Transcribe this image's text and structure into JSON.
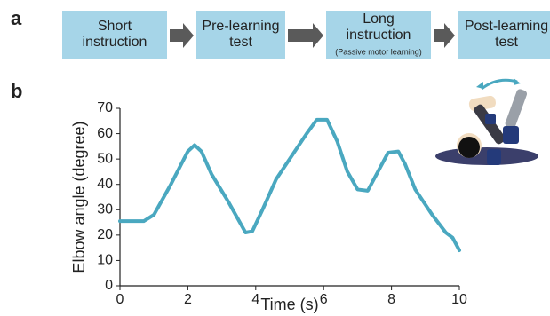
{
  "panel_a": {
    "label": "a",
    "steps": [
      {
        "lines": [
          "Short",
          "instruction"
        ]
      },
      {
        "lines": [
          "Pre-learning",
          "test"
        ]
      },
      {
        "lines": [
          "Long",
          "instruction"
        ],
        "note": "(Passive motor learning)"
      },
      {
        "lines": [
          "Post-learning",
          "test"
        ]
      }
    ]
  },
  "chart_data": {
    "type": "line",
    "panel_label": "b",
    "x_label": "Time (s)",
    "y_label": "Elbow angle (degree)",
    "xlim": [
      0,
      10
    ],
    "ylim": [
      0,
      70
    ],
    "xticks": [
      0,
      2,
      4,
      6,
      8,
      10
    ],
    "yticks": [
      0,
      10,
      20,
      30,
      40,
      50,
      60,
      70
    ],
    "series": [
      {
        "color": "#4aa8c0",
        "x": [
          0,
          0.7,
          1,
          1.5,
          2,
          2.2,
          2.4,
          2.7,
          3.2,
          3.7,
          3.9,
          4.2,
          4.6,
          5,
          5.5,
          5.8,
          6.1,
          6.4,
          6.7,
          7,
          7.3,
          7.6,
          7.9,
          8.2,
          8.4,
          8.7,
          9.2,
          9.6,
          9.8,
          10
        ],
        "values": [
          25.5,
          25.5,
          28,
          40,
          53,
          55.5,
          53,
          44,
          33,
          21,
          21.5,
          30,
          42,
          50,
          60,
          65.5,
          65.5,
          57,
          45,
          38,
          37.5,
          45,
          52.5,
          53,
          48,
          38,
          28,
          21,
          19,
          14
        ]
      }
    ]
  }
}
